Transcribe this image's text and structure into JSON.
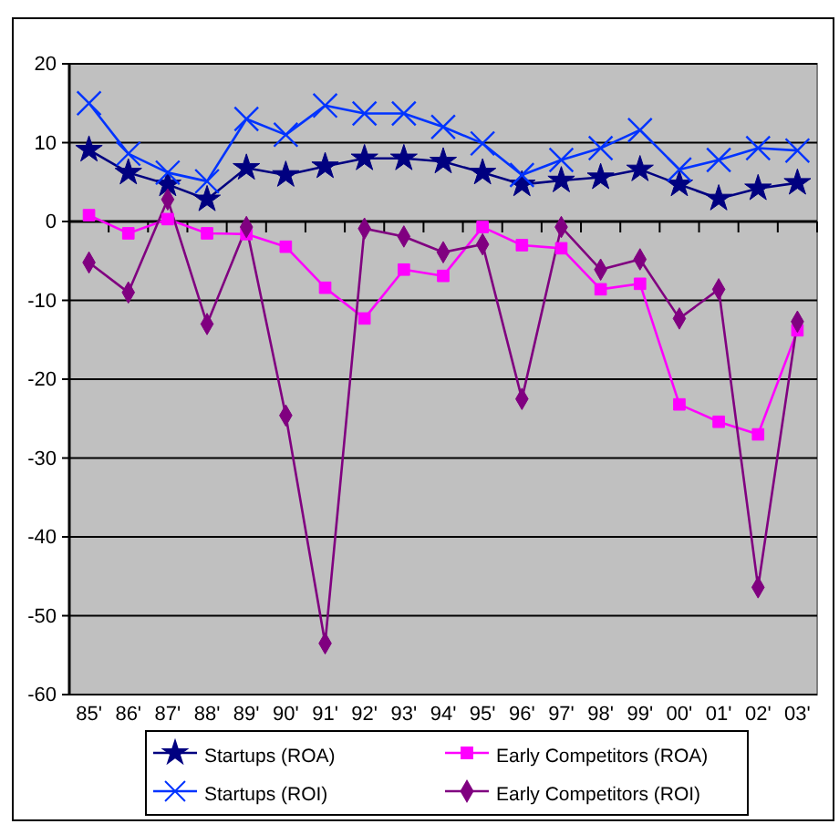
{
  "chart_data": {
    "type": "line",
    "categories": [
      "85'",
      "86'",
      "87'",
      "88'",
      "89'",
      "90'",
      "91'",
      "92'",
      "93'",
      "94'",
      "95'",
      "96'",
      "97'",
      "98'",
      "99'",
      "00'",
      "01'",
      "02'",
      "03'"
    ],
    "series": [
      {
        "name": "Startups (ROA)",
        "color": "#000080",
        "marker": "star",
        "values": [
          9.1,
          6.2,
          4.7,
          2.8,
          6.8,
          5.9,
          7.0,
          8.0,
          8.0,
          7.6,
          6.2,
          4.7,
          5.2,
          5.6,
          6.6,
          4.7,
          2.9,
          4.2,
          4.9
        ]
      },
      {
        "name": "Startups (ROI)",
        "color": "#0033ff",
        "marker": "cross",
        "values": [
          15.0,
          8.6,
          6.2,
          5.1,
          13.0,
          11.0,
          14.7,
          13.7,
          13.7,
          12.0,
          9.9,
          5.9,
          7.8,
          9.3,
          11.6,
          6.6,
          7.8,
          9.3,
          9.0
        ]
      },
      {
        "name": "Early Competitors (ROA)",
        "color": "#ff00ff",
        "marker": "square",
        "values": [
          0.8,
          -1.5,
          0.3,
          -1.5,
          -1.6,
          -3.2,
          -8.4,
          -12.3,
          -6.1,
          -6.9,
          -0.7,
          -3.0,
          -3.4,
          -8.6,
          -7.9,
          -23.2,
          -25.4,
          -27.0,
          -13.8
        ]
      },
      {
        "name": "Early Competitors (ROI)",
        "color": "#800080",
        "marker": "diamond",
        "values": [
          -5.2,
          -9.0,
          2.8,
          -13.0,
          -0.7,
          -24.6,
          -53.5,
          -0.9,
          -1.9,
          -3.9,
          -2.9,
          -22.5,
          -0.7,
          -6.1,
          -4.8,
          -12.3,
          -8.6,
          -46.4,
          -12.7
        ]
      }
    ],
    "ylim": [
      -60,
      20
    ],
    "yticks": [
      -60,
      -50,
      -40,
      -30,
      -20,
      -10,
      0,
      10,
      20
    ],
    "grid": "y",
    "legend": "bottom"
  }
}
